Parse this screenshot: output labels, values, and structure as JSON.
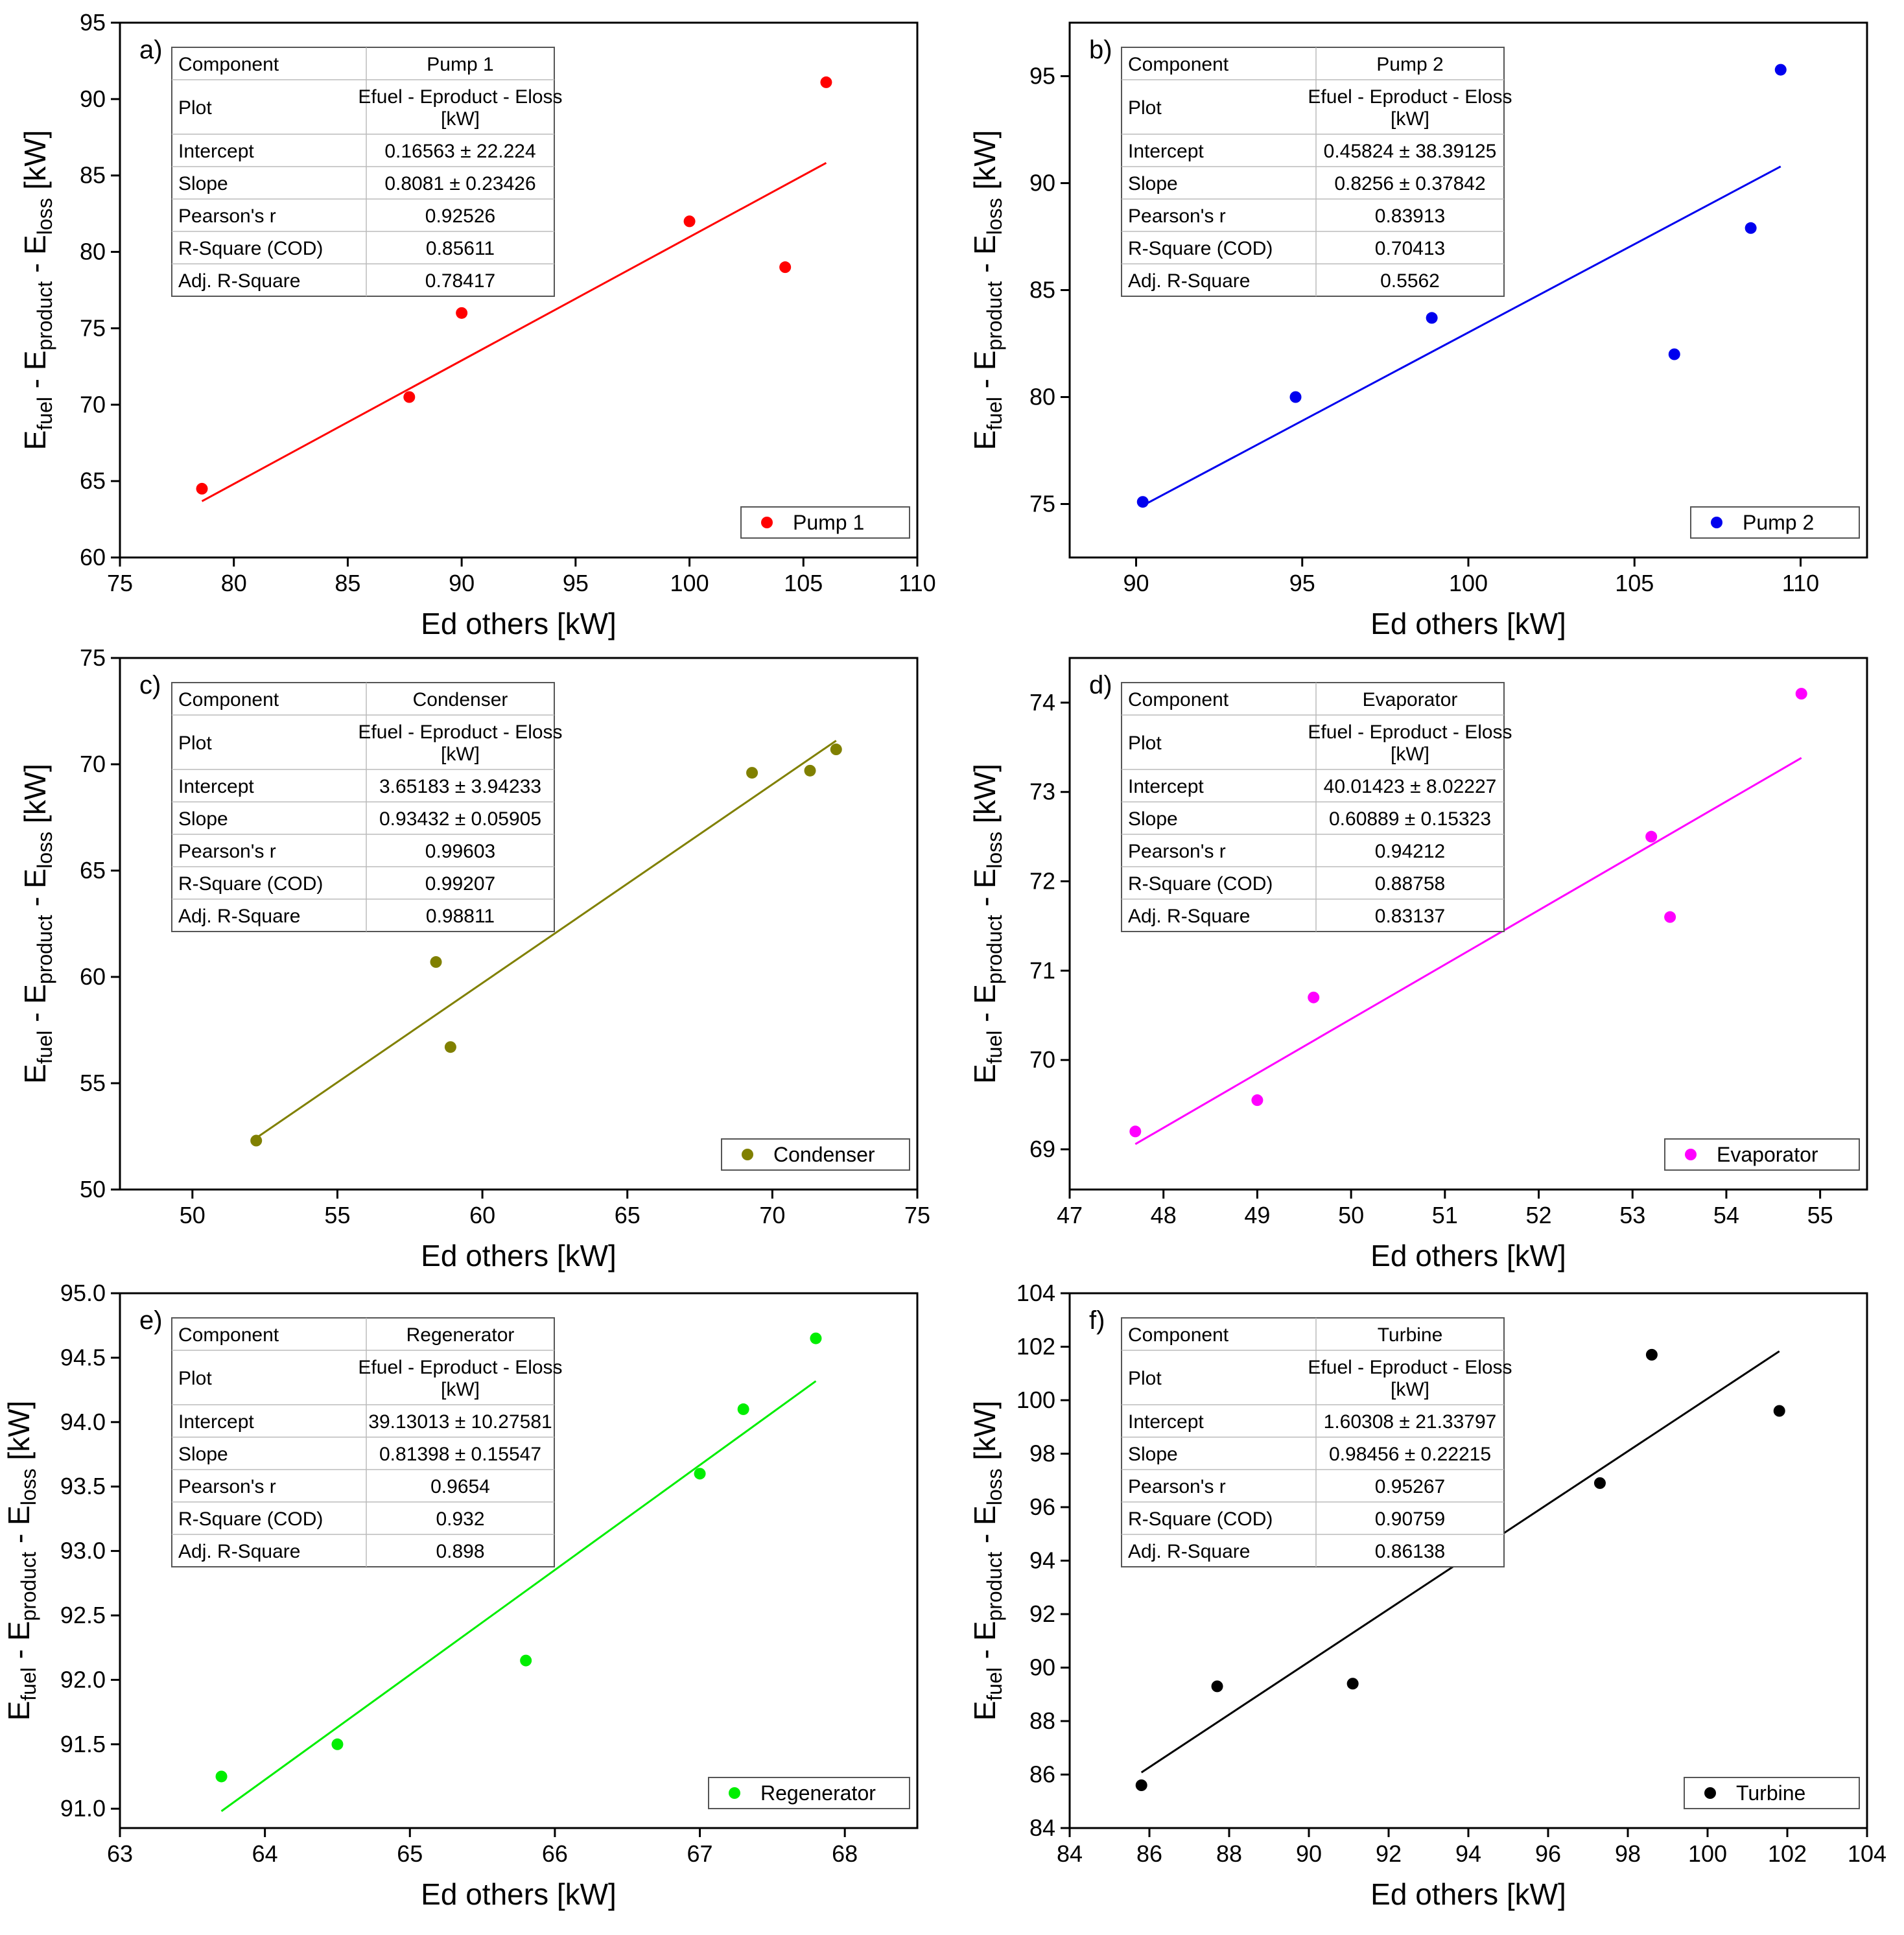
{
  "figure": {
    "common_xlabel": "Ed others [kW]"
  },
  "chart_data": [
    {
      "type": "scatter",
      "panel": "a)",
      "component": "Pump 1",
      "color": "#ff0000",
      "title": "",
      "xlabel": "Ed others [kW]",
      "ylabel": {
        "main": "E",
        "parts": [
          {
            "text": "E"
          },
          {
            "text": "fuel",
            "sub": true
          },
          {
            "text": " - E"
          },
          {
            "text": "product",
            "sub": true
          },
          {
            "text": " - E"
          },
          {
            "text": "loss",
            "sub": true
          },
          {
            "text": " [kW]"
          }
        ]
      },
      "xlim": [
        75,
        110
      ],
      "ylim": [
        60,
        95
      ],
      "xticks": [
        75,
        80,
        85,
        90,
        95,
        100,
        105,
        110
      ],
      "yticks": [
        60,
        65,
        70,
        75,
        80,
        85,
        90,
        95
      ],
      "tick_labels_x": [
        "75",
        "80",
        "85",
        "90",
        "95",
        "100",
        "105",
        "110"
      ],
      "tick_labels_y": [
        "60",
        "65",
        "70",
        "75",
        "80",
        "85",
        "90",
        "95"
      ],
      "x": [
        78.6,
        87.7,
        90.0,
        100.0,
        104.2,
        106.0
      ],
      "y": [
        64.5,
        70.5,
        76.0,
        82.0,
        79.0,
        91.1
      ],
      "fit_x": [
        78.6,
        106.0
      ],
      "fit": {
        "intercept": 0.16563,
        "slope": 0.8081
      },
      "legend": "Pump 1",
      "stats": {
        "header": [
          "Component",
          "Pump 1"
        ],
        "rows": [
          [
            "Plot",
            "Efuel - Eproduct - Eloss [kW]"
          ],
          [
            "Intercept",
            "0.16563 ± 22.224"
          ],
          [
            "Slope",
            "0.8081 ± 0.23426"
          ],
          [
            "Pearson's r",
            "0.92526"
          ],
          [
            "R-Square (COD)",
            "0.85611"
          ],
          [
            "Adj. R-Square",
            "0.78417"
          ]
        ]
      }
    },
    {
      "type": "scatter",
      "panel": "b)",
      "component": "Pump 2",
      "color": "#0000ee",
      "xlabel": "Ed others [kW]",
      "xlim": [
        88,
        112
      ],
      "ylim": [
        72.5,
        97.5
      ],
      "xticks": [
        90,
        95,
        100,
        105,
        110
      ],
      "yticks": [
        75,
        80,
        85,
        90,
        95
      ],
      "tick_labels_x": [
        "90",
        "95",
        "100",
        "105",
        "110"
      ],
      "tick_labels_y": [
        "75",
        "80",
        "85",
        "90",
        "95"
      ],
      "x": [
        90.2,
        94.8,
        98.9,
        106.2,
        108.5,
        109.4
      ],
      "y": [
        75.1,
        80.0,
        83.7,
        82.0,
        87.9,
        95.3
      ],
      "fit_x": [
        90.2,
        109.4
      ],
      "fit": {
        "intercept": 0.45824,
        "slope": 0.8256
      },
      "legend": "Pump 2",
      "stats": {
        "header": [
          "Component",
          "Pump 2"
        ],
        "rows": [
          [
            "Plot",
            "Efuel - Eproduct - Eloss [kW]"
          ],
          [
            "Intercept",
            "0.45824 ± 38.39125"
          ],
          [
            "Slope",
            "0.8256 ± 0.37842"
          ],
          [
            "Pearson's r",
            "0.83913"
          ],
          [
            "R-Square (COD)",
            "0.70413"
          ],
          [
            "Adj. R-Square",
            "0.5562"
          ]
        ]
      }
    },
    {
      "type": "scatter",
      "panel": "c)",
      "component": "Condenser",
      "color": "#808000",
      "xlabel": "Ed others [kW]",
      "xlim": [
        47.5,
        75
      ],
      "ylim": [
        50,
        75
      ],
      "xticks": [
        50,
        55,
        60,
        65,
        70,
        75
      ],
      "yticks": [
        50,
        55,
        60,
        65,
        70,
        75
      ],
      "tick_labels_x": [
        "50",
        "55",
        "60",
        "65",
        "70",
        "75"
      ],
      "tick_labels_y": [
        "50",
        "55",
        "60",
        "65",
        "70",
        "75"
      ],
      "x": [
        52.2,
        58.4,
        58.9,
        69.3,
        71.3,
        72.2
      ],
      "y": [
        52.3,
        60.7,
        56.7,
        69.6,
        69.7,
        70.7
      ],
      "fit_x": [
        52.2,
        72.2
      ],
      "fit": {
        "intercept": 3.65183,
        "slope": 0.93432
      },
      "legend": "Condenser",
      "stats": {
        "header": [
          "Component",
          "Condenser"
        ],
        "rows": [
          [
            "Plot",
            "Efuel - Eproduct - Eloss [kW]"
          ],
          [
            "Intercept",
            "3.65183 ± 3.94233"
          ],
          [
            "Slope",
            "0.93432 ± 0.05905"
          ],
          [
            "Pearson's r",
            "0.99603"
          ],
          [
            "R-Square (COD)",
            "0.99207"
          ],
          [
            "Adj. R-Square",
            "0.98811"
          ]
        ]
      }
    },
    {
      "type": "scatter",
      "panel": "d)",
      "component": "Evaporator",
      "color": "#ff00ff",
      "xlabel": "Ed others [kW]",
      "xlim": [
        47,
        55.5
      ],
      "ylim": [
        68.55,
        74.5
      ],
      "xticks": [
        47,
        48,
        49,
        50,
        51,
        52,
        53,
        54,
        55
      ],
      "yticks": [
        69,
        70,
        71,
        72,
        73,
        74
      ],
      "tick_labels_x": [
        "47",
        "48",
        "49",
        "50",
        "51",
        "52",
        "53",
        "54",
        "55"
      ],
      "tick_labels_y": [
        "69",
        "70",
        "71",
        "72",
        "73",
        "74"
      ],
      "x": [
        47.7,
        49.0,
        49.6,
        53.2,
        53.4,
        54.8
      ],
      "y": [
        69.2,
        69.55,
        70.7,
        72.5,
        71.6,
        74.1
      ],
      "fit_x": [
        47.7,
        54.8
      ],
      "fit": {
        "intercept": 40.01423,
        "slope": 0.60889
      },
      "legend": "Evaporator",
      "stats": {
        "header": [
          "Component",
          "Evaporator"
        ],
        "rows": [
          [
            "Plot",
            "Efuel - Eproduct - Eloss [kW]"
          ],
          [
            "Intercept",
            "40.01423 ± 8.02227"
          ],
          [
            "Slope",
            "0.60889 ± 0.15323"
          ],
          [
            "Pearson's r",
            "0.94212"
          ],
          [
            "R-Square (COD)",
            "0.88758"
          ],
          [
            "Adj. R-Square",
            "0.83137"
          ]
        ]
      }
    },
    {
      "type": "scatter",
      "panel": "e)",
      "component": "Regenerator",
      "color": "#00ee00",
      "xlabel": "Ed others [kW]",
      "xlim": [
        63,
        68.5
      ],
      "ylim": [
        90.85,
        95
      ],
      "xticks": [
        63,
        64,
        65,
        66,
        67,
        68
      ],
      "yticks": [
        91.0,
        91.5,
        92.0,
        92.5,
        93.0,
        93.5,
        94.0,
        94.5,
        95.0
      ],
      "tick_labels_x": [
        "63",
        "64",
        "65",
        "66",
        "67",
        "68"
      ],
      "tick_labels_y": [
        "91.0",
        "91.5",
        "92.0",
        "92.5",
        "93.0",
        "93.5",
        "94.0",
        "94.5",
        "95.0"
      ],
      "x": [
        63.7,
        64.5,
        65.8,
        67.0,
        67.3,
        67.8
      ],
      "y": [
        91.25,
        91.5,
        92.15,
        93.6,
        94.1,
        94.65
      ],
      "fit_x": [
        63.7,
        67.8
      ],
      "fit": {
        "intercept": 39.13013,
        "slope": 0.81398
      },
      "legend": "Regenerator",
      "stats": {
        "header": [
          "Component",
          "Regenerator"
        ],
        "rows": [
          [
            "Plot",
            "Efuel - Eproduct - Eloss [kW]"
          ],
          [
            "Intercept",
            "39.13013 ± 10.27581"
          ],
          [
            "Slope",
            "0.81398 ± 0.15547"
          ],
          [
            "Pearson's r",
            "0.9654"
          ],
          [
            "R-Square (COD)",
            "0.932"
          ],
          [
            "Adj. R-Square",
            "0.898"
          ]
        ]
      }
    },
    {
      "type": "scatter",
      "panel": "f)",
      "component": "Turbine",
      "color": "#000000",
      "xlabel": "Ed others [kW]",
      "xlim": [
        84,
        104
      ],
      "ylim": [
        84,
        104
      ],
      "xticks": [
        84,
        86,
        88,
        90,
        92,
        94,
        96,
        98,
        100,
        102,
        104
      ],
      "yticks": [
        84,
        86,
        88,
        90,
        92,
        94,
        96,
        98,
        100,
        102,
        104
      ],
      "tick_labels_x": [
        "84",
        "86",
        "88",
        "90",
        "92",
        "94",
        "96",
        "98",
        "100",
        "102",
        "104"
      ],
      "tick_labels_y": [
        "84",
        "86",
        "88",
        "90",
        "92",
        "94",
        "96",
        "98",
        "100",
        "102",
        "104"
      ],
      "x": [
        85.8,
        87.7,
        91.1,
        97.3,
        98.6,
        101.8
      ],
      "y": [
        85.6,
        89.3,
        89.4,
        96.9,
        101.7,
        99.6
      ],
      "fit_x": [
        85.8,
        101.8
      ],
      "fit": {
        "intercept": 1.60308,
        "slope": 0.98456
      },
      "legend": "Turbine",
      "stats": {
        "header": [
          "Component",
          "Turbine"
        ],
        "rows": [
          [
            "Plot",
            "Efuel - Eproduct - Eloss [kW]"
          ],
          [
            "Intercept",
            "1.60308 ± 21.33797"
          ],
          [
            "Slope",
            "0.98456 ± 0.22215"
          ],
          [
            "Pearson's r",
            "0.95267"
          ],
          [
            "R-Square (COD)",
            "0.90759"
          ],
          [
            "Adj. R-Square",
            "0.86138"
          ]
        ]
      }
    }
  ]
}
